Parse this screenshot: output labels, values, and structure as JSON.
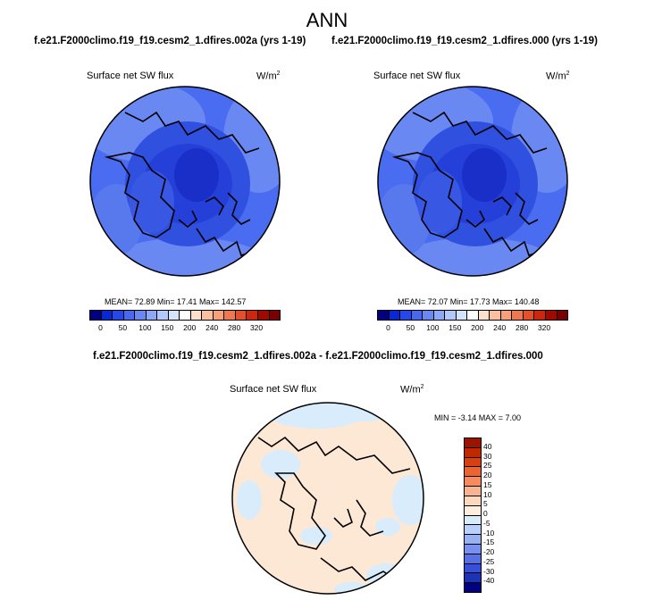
{
  "figure": {
    "title": "ANN",
    "panel_left": {
      "case": "f.e21.F2000climo.f19_f19.cesm2_1.dfires.002a (yrs 1-19)",
      "variable": "Surface net SW flux",
      "units": "W/m",
      "units_sup": "2",
      "stats": "MEAN=  72.89  Min=  17.41  Max=  142.57"
    },
    "panel_right": {
      "case": "f.e21.F2000climo.f19_f19.cesm2_1.dfires.000 (yrs 1-19)",
      "variable": "Surface net SW flux",
      "units": "W/m",
      "units_sup": "2",
      "stats": "MEAN=  72.07  Min=  17.73  Max=  140.48"
    },
    "diff_panel": {
      "title": "f.e21.F2000climo.f19_f19.cesm2_1.dfires.002a - f.e21.F2000climo.f19_f19.cesm2_1.dfires.000",
      "variable": "Surface net SW flux",
      "units": "W/m",
      "units_sup": "2",
      "stats": "MIN = -3.14 MAX =  7.00"
    }
  },
  "colorbars": {
    "main": {
      "colors": [
        "#000080",
        "#0a28d2",
        "#2848e6",
        "#4868ee",
        "#6a88f2",
        "#8ca8f6",
        "#b0c8fa",
        "#d4e4fc",
        "#ffffff",
        "#fce0cc",
        "#fcc0a0",
        "#f8a07a",
        "#f07850",
        "#e45028",
        "#cc2810",
        "#a00800",
        "#780000"
      ],
      "ticks": [
        "0",
        "50",
        "100",
        "150",
        "200",
        "240",
        "280",
        "320"
      ]
    },
    "diff": {
      "colors": [
        "#9c1400",
        "#c02800",
        "#d84010",
        "#ec6430",
        "#f48c60",
        "#f8b490",
        "#fcd8bc",
        "#fdeedd",
        "#d8ecfc",
        "#b8d0fa",
        "#98b0f4",
        "#7890ee",
        "#5870e6",
        "#3450dc",
        "#1e32b4",
        "#000080"
      ],
      "ticks": [
        "40",
        "30",
        "25",
        "20",
        "15",
        "10",
        "5",
        "0",
        "-5",
        "-10",
        "-15",
        "-20",
        "-25",
        "-30",
        "-40"
      ]
    }
  },
  "chart_data": {
    "type": "heatmap",
    "projection": "north polar stereographic",
    "panels": [
      {
        "name": "f.e21.F2000climo.f19_f19.cesm2_1.dfires.002a (yrs 1-19)",
        "mean": 72.89,
        "min": 17.41,
        "max": 142.57
      },
      {
        "name": "f.e21.F2000climo.f19_f19.cesm2_1.dfires.000 (yrs 1-19)",
        "mean": 72.07,
        "min": 17.73,
        "max": 140.48
      },
      {
        "name": "f.e21.F2000climo.f19_f19.cesm2_1.dfires.002a - f.e21.F2000climo.f19_f19.cesm2_1.dfires.000",
        "min": -3.14,
        "max": 7.0
      }
    ]
  }
}
